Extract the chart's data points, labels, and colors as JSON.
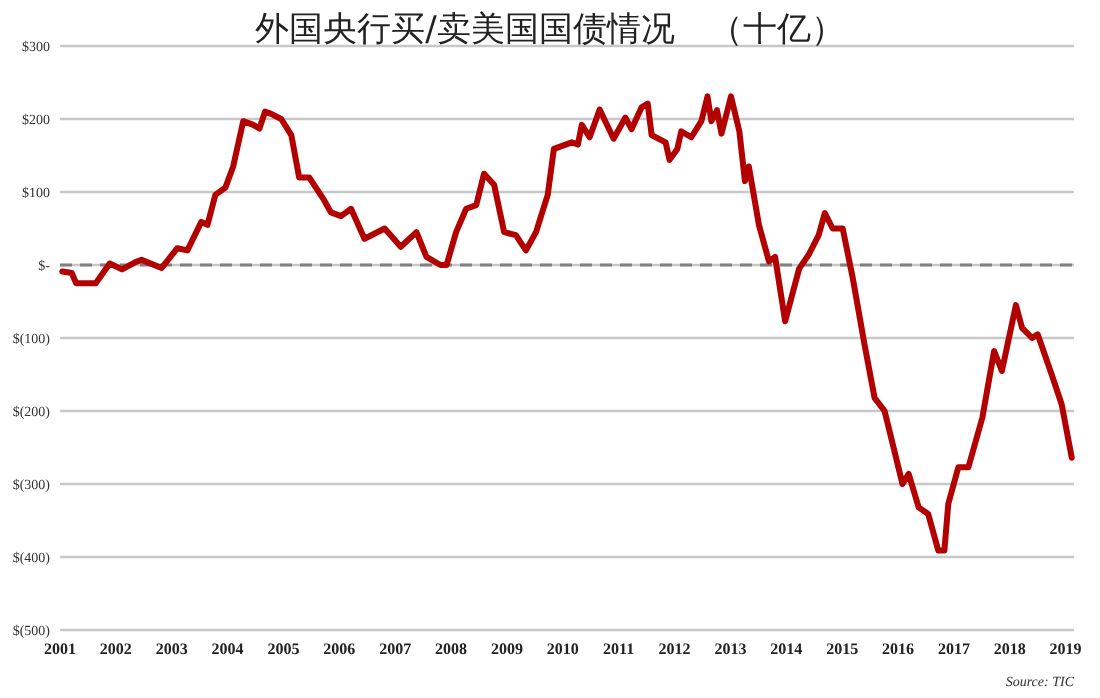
{
  "chart_data": {
    "type": "line",
    "title": "外国央行买/卖美国国债情况　（十亿）",
    "annotations": [
      "Source: TIC"
    ],
    "x": [
      2001.04,
      2001.21,
      2001.29,
      2001.64,
      2001.89,
      2002.11,
      2002.35,
      2002.46,
      2002.82,
      2003.1,
      2003.28,
      2003.53,
      2003.64,
      2003.78,
      2003.96,
      2004.1,
      2004.28,
      2004.46,
      2004.57,
      2004.67,
      2004.78,
      2004.96,
      2005.14,
      2005.28,
      2005.46,
      2005.71,
      2005.85,
      2006.03,
      2006.21,
      2006.45,
      2006.81,
      2007.1,
      2007.38,
      2007.56,
      2007.81,
      2007.92,
      2008.09,
      2008.27,
      2008.45,
      2008.59,
      2008.77,
      2008.95,
      2009.16,
      2009.34,
      2009.52,
      2009.73,
      2009.84,
      2010.16,
      2010.27,
      2010.34,
      2010.48,
      2010.66,
      2010.91,
      2011.12,
      2011.23,
      2011.41,
      2011.52,
      2011.59,
      2011.84,
      2011.91,
      2012.05,
      2012.12,
      2012.3,
      2012.48,
      2012.59,
      2012.66,
      2012.76,
      2012.84,
      2013.01,
      2013.16,
      2013.26,
      2013.33,
      2013.51,
      2013.69,
      2013.8,
      2013.98,
      2014.23,
      2014.4,
      2014.58,
      2014.69,
      2014.83,
      2015.01,
      2015.19,
      2015.4,
      2015.58,
      2015.76,
      2016.08,
      2016.19,
      2016.37,
      2016.54,
      2016.72,
      2016.83,
      2016.9,
      2017.08,
      2017.26,
      2017.51,
      2017.72,
      2017.86,
      2018.11,
      2018.22,
      2018.4,
      2018.5,
      2018.75,
      2018.93,
      2019.11
    ],
    "series": [
      {
        "color": "#b30000",
        "values": [
          -9,
          -11,
          -25,
          -25,
          2,
          -6,
          4,
          7,
          -4,
          23,
          20,
          59,
          55,
          96,
          106,
          135,
          197,
          192,
          187,
          210,
          207,
          200,
          178,
          120,
          120,
          91,
          72,
          67,
          77,
          36,
          50,
          25,
          45,
          11,
          0,
          0,
          45,
          77,
          82,
          125,
          110,
          45,
          41,
          20,
          45,
          96,
          159,
          168,
          165,
          192,
          175,
          213,
          173,
          202,
          186,
          216,
          221,
          178,
          168,
          144,
          159,
          183,
          175,
          197,
          231,
          197,
          212,
          180,
          231,
          183,
          115,
          135,
          55,
          5,
          11,
          -77,
          -5,
          14,
          41,
          71,
          50,
          50,
          -18,
          -109,
          -182,
          -200,
          -300,
          -286,
          -332,
          -341,
          -391,
          -391,
          -327,
          -277,
          -277,
          -209,
          -118,
          -145,
          -55,
          -86,
          -100,
          -95,
          -150,
          -191,
          -264
        ]
      }
    ],
    "xlim": [
      2001,
      2019.15
    ],
    "xticks": [
      2001,
      2002,
      2003,
      2004,
      2005,
      2006,
      2007,
      2008,
      2009,
      2010,
      2011,
      2012,
      2013,
      2014,
      2015,
      2016,
      2017,
      2018,
      2019
    ],
    "ylim": [
      -500,
      300
    ],
    "yticks": [
      {
        "value": 300,
        "label": "$300"
      },
      {
        "value": 200,
        "label": "$200"
      },
      {
        "value": 100,
        "label": "$100"
      },
      {
        "value": 0,
        "label": "$-"
      },
      {
        "value": -100,
        "label": "$(100)"
      },
      {
        "value": -200,
        "label": "$(200)"
      },
      {
        "value": -300,
        "label": "$(300)"
      },
      {
        "value": -400,
        "label": "$(400)"
      },
      {
        "value": -500,
        "label": "$(500)"
      }
    ],
    "grid": "y",
    "marker": "none",
    "line_style": "solid",
    "ref_lines": [
      {
        "axis": "y",
        "value": 0,
        "color": "#808080",
        "line_style": "dashed"
      }
    ]
  }
}
